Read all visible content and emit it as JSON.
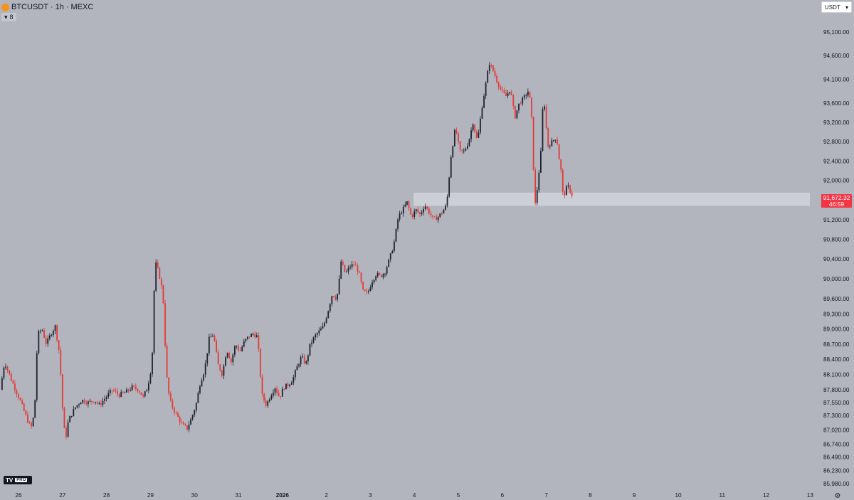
{
  "header": {
    "symbol": "BTCUSDT",
    "interval": "1h",
    "exchange": "MEXC",
    "title_sep": "·",
    "collapse_label": "8",
    "currency": "USDT",
    "chevron_glyph": "▾"
  },
  "branding": {
    "tv": "TV",
    "pro": "PRO"
  },
  "colors": {
    "background": "#b2b5be",
    "up_candle": "#1e222d",
    "down_candle": "#e53935",
    "zone": "#d1d4dc",
    "price_tag": "#f23645",
    "text": "#131722"
  },
  "price_tag": {
    "price": "91,672.32",
    "countdown": "46:59"
  },
  "chart_data": {
    "type": "candlestick",
    "title": "BTCUSDT · 1h · MEXC",
    "y_scale": "log",
    "yticks": [
      95100,
      94600,
      94100,
      93600,
      93200,
      92800,
      92400,
      92000,
      91600,
      91200,
      90800,
      90400,
      90000,
      89600,
      89300,
      89000,
      88700,
      88400,
      88100,
      87800,
      87550,
      87300,
      87020,
      86740,
      86490,
      86230,
      85980
    ],
    "ytick_labels": [
      "95,100.00",
      "94,600.00",
      "94,100.00",
      "93,600.00",
      "93,200.00",
      "92,800.00",
      "92,400.00",
      "92,000.00",
      "91,600.00",
      "91,200.00",
      "90,800.00",
      "90,400.00",
      "90,000.00",
      "89,600.00",
      "89,300.00",
      "89,000.00",
      "88,700.00",
      "88,400.00",
      "88,100.00",
      "87,800.00",
      "87,550.00",
      "87,300.00",
      "87,020.00",
      "86,740.00",
      "86,490.00",
      "86,230.00",
      "85,980.00"
    ],
    "x_labels": [
      "26",
      "27",
      "28",
      "29",
      "30",
      "31",
      "2026",
      "2",
      "3",
      "4",
      "5",
      "6",
      "7",
      "8",
      "9",
      "10",
      "11",
      "12",
      "13"
    ],
    "x_days": [
      0,
      1,
      2,
      3,
      4,
      5,
      6,
      7,
      8,
      9,
      10,
      11,
      12,
      13,
      14,
      15,
      16,
      17,
      18
    ],
    "zone": {
      "top": 91750,
      "bottom": 91480,
      "from_day": 9.0
    },
    "last_price": 91672.32,
    "price_path": [
      [
        -0.4,
        87800
      ],
      [
        -0.3,
        88350
      ],
      [
        -0.15,
        88000
      ],
      [
        0.05,
        87600
      ],
      [
        0.2,
        87250
      ],
      [
        0.3,
        87050
      ],
      [
        0.38,
        87350
      ],
      [
        0.45,
        88900
      ],
      [
        0.55,
        89000
      ],
      [
        0.65,
        88700
      ],
      [
        0.75,
        88900
      ],
      [
        0.85,
        89050
      ],
      [
        0.95,
        88500
      ],
      [
        1.02,
        87400
      ],
      [
        1.08,
        86800
      ],
      [
        1.15,
        87200
      ],
      [
        1.3,
        87450
      ],
      [
        1.45,
        87600
      ],
      [
        1.6,
        87550
      ],
      [
        1.75,
        87600
      ],
      [
        1.85,
        87500
      ],
      [
        2.0,
        87650
      ],
      [
        2.15,
        87800
      ],
      [
        2.3,
        87700
      ],
      [
        2.45,
        87750
      ],
      [
        2.6,
        87850
      ],
      [
        2.75,
        87800
      ],
      [
        2.85,
        87650
      ],
      [
        2.95,
        87850
      ],
      [
        3.05,
        88300
      ],
      [
        3.12,
        90350
      ],
      [
        3.2,
        90150
      ],
      [
        3.3,
        89700
      ],
      [
        3.38,
        88100
      ],
      [
        3.45,
        87600
      ],
      [
        3.55,
        87400
      ],
      [
        3.65,
        87250
      ],
      [
        3.75,
        87100
      ],
      [
        3.85,
        87050
      ],
      [
        3.95,
        87250
      ],
      [
        4.05,
        87500
      ],
      [
        4.15,
        87950
      ],
      [
        4.25,
        88200
      ],
      [
        4.35,
        88800
      ],
      [
        4.45,
        88900
      ],
      [
        4.55,
        88300
      ],
      [
        4.65,
        88100
      ],
      [
        4.75,
        88600
      ],
      [
        4.85,
        88350
      ],
      [
        4.95,
        88700
      ],
      [
        5.05,
        88550
      ],
      [
        5.15,
        88750
      ],
      [
        5.25,
        88850
      ],
      [
        5.35,
        88900
      ],
      [
        5.45,
        88850
      ],
      [
        5.55,
        87700
      ],
      [
        5.65,
        87500
      ],
      [
        5.75,
        87700
      ],
      [
        5.85,
        87850
      ],
      [
        5.95,
        87650
      ],
      [
        6.05,
        87850
      ],
      [
        6.15,
        87900
      ],
      [
        6.25,
        88000
      ],
      [
        6.35,
        88250
      ],
      [
        6.45,
        88450
      ],
      [
        6.55,
        88300
      ],
      [
        6.65,
        88700
      ],
      [
        6.75,
        88850
      ],
      [
        6.85,
        88950
      ],
      [
        6.95,
        89050
      ],
      [
        7.05,
        89350
      ],
      [
        7.15,
        89700
      ],
      [
        7.25,
        89600
      ],
      [
        7.3,
        89900
      ],
      [
        7.35,
        90350
      ],
      [
        7.45,
        90100
      ],
      [
        7.55,
        90250
      ],
      [
        7.65,
        90300
      ],
      [
        7.75,
        90150
      ],
      [
        7.85,
        89750
      ],
      [
        7.95,
        89700
      ],
      [
        8.05,
        89950
      ],
      [
        8.15,
        90100
      ],
      [
        8.25,
        90050
      ],
      [
        8.35,
        90150
      ],
      [
        8.45,
        90400
      ],
      [
        8.55,
        90700
      ],
      [
        8.65,
        91250
      ],
      [
        8.75,
        91400
      ],
      [
        8.85,
        91550
      ],
      [
        8.95,
        91250
      ],
      [
        9.05,
        91400
      ],
      [
        9.15,
        91300
      ],
      [
        9.25,
        91500
      ],
      [
        9.35,
        91350
      ],
      [
        9.45,
        91200
      ],
      [
        9.55,
        91250
      ],
      [
        9.65,
        91350
      ],
      [
        9.75,
        91500
      ],
      [
        9.85,
        92500
      ],
      [
        9.95,
        93100
      ],
      [
        10.05,
        92600
      ],
      [
        10.15,
        92600
      ],
      [
        10.25,
        92800
      ],
      [
        10.35,
        93200
      ],
      [
        10.45,
        92800
      ],
      [
        10.55,
        93500
      ],
      [
        10.65,
        94050
      ],
      [
        10.72,
        94450
      ],
      [
        10.8,
        94300
      ],
      [
        10.9,
        94050
      ],
      [
        11.0,
        93850
      ],
      [
        11.1,
        93750
      ],
      [
        11.2,
        93900
      ],
      [
        11.3,
        93300
      ],
      [
        11.4,
        93600
      ],
      [
        11.5,
        93700
      ],
      [
        11.6,
        93850
      ],
      [
        11.65,
        93650
      ],
      [
        11.7,
        93100
      ],
      [
        11.75,
        91400
      ],
      [
        11.82,
        91900
      ],
      [
        11.9,
        92650
      ],
      [
        11.95,
        93850
      ],
      [
        12.05,
        92700
      ],
      [
        12.15,
        92800
      ],
      [
        12.25,
        92900
      ],
      [
        12.3,
        92500
      ],
      [
        12.35,
        92200
      ],
      [
        12.4,
        91650
      ],
      [
        12.5,
        91900
      ],
      [
        12.55,
        91800
      ],
      [
        12.62,
        91672
      ]
    ]
  }
}
